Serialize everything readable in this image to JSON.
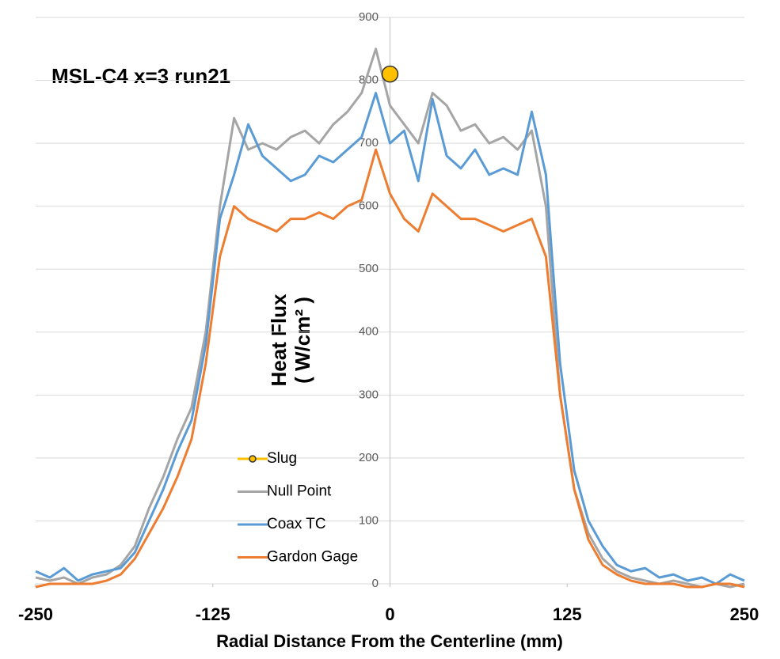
{
  "chart_data": {
    "type": "line",
    "title": "MSL-C4  x=3 run21",
    "x_label": "Radial Distance From the Centerline (mm)",
    "y_label": [
      "Heat Flux",
      "( W/cm² )"
    ],
    "x": [
      -250,
      -240,
      -230,
      -220,
      -210,
      -200,
      -190,
      -180,
      -170,
      -160,
      -150,
      -140,
      -130,
      -120,
      -110,
      -100,
      -90,
      -80,
      -70,
      -60,
      -50,
      -40,
      -30,
      -20,
      -10,
      0,
      10,
      20,
      30,
      40,
      50,
      60,
      70,
      80,
      90,
      100,
      110,
      120,
      130,
      140,
      150,
      160,
      170,
      180,
      190,
      200,
      210,
      220,
      230,
      240,
      250
    ],
    "series": [
      {
        "name": "Slug",
        "color": "#ffc000",
        "marker": true,
        "values": [
          null,
          null,
          null,
          null,
          null,
          null,
          null,
          null,
          null,
          null,
          null,
          null,
          null,
          null,
          null,
          null,
          null,
          null,
          null,
          null,
          null,
          null,
          null,
          null,
          null,
          810,
          null,
          null,
          null,
          null,
          null,
          null,
          null,
          null,
          null,
          null,
          null,
          null,
          null,
          null,
          null,
          null,
          null,
          null,
          null,
          null,
          null,
          null,
          null,
          null,
          null
        ]
      },
      {
        "name": "Null Point",
        "color": "#a5a5a5",
        "values": [
          10,
          5,
          10,
          0,
          10,
          15,
          30,
          60,
          120,
          170,
          230,
          280,
          400,
          600,
          740,
          690,
          700,
          690,
          710,
          720,
          700,
          730,
          750,
          780,
          850,
          760,
          730,
          700,
          780,
          760,
          720,
          730,
          700,
          710,
          690,
          720,
          600,
          300,
          150,
          80,
          40,
          20,
          10,
          5,
          0,
          5,
          0,
          -5,
          0,
          -5,
          0
        ]
      },
      {
        "name": "Coax TC",
        "color": "#5b9bd5",
        "values": [
          20,
          10,
          25,
          5,
          15,
          20,
          25,
          50,
          100,
          150,
          210,
          260,
          380,
          580,
          650,
          730,
          680,
          660,
          640,
          650,
          680,
          670,
          690,
          710,
          780,
          700,
          720,
          640,
          770,
          680,
          660,
          690,
          650,
          660,
          650,
          750,
          650,
          350,
          180,
          100,
          60,
          30,
          20,
          25,
          10,
          15,
          5,
          10,
          0,
          15,
          5
        ]
      },
      {
        "name": "Gardon Gage",
        "color": "#ed7d31",
        "values": [
          -5,
          0,
          0,
          0,
          0,
          5,
          15,
          40,
          80,
          120,
          170,
          230,
          350,
          520,
          600,
          580,
          570,
          560,
          580,
          580,
          590,
          580,
          600,
          610,
          690,
          620,
          580,
          560,
          620,
          600,
          580,
          580,
          570,
          560,
          570,
          580,
          520,
          300,
          150,
          70,
          30,
          15,
          5,
          0,
          0,
          0,
          -5,
          -5,
          0,
          0,
          -5
        ]
      }
    ],
    "xlim": [
      -250,
      250
    ],
    "xticks": [
      -250,
      -125,
      0,
      125,
      250
    ],
    "ylim": [
      0,
      900
    ],
    "yticks": [
      0,
      100,
      200,
      300,
      400,
      500,
      600,
      700,
      800,
      900
    ],
    "grid": true
  }
}
